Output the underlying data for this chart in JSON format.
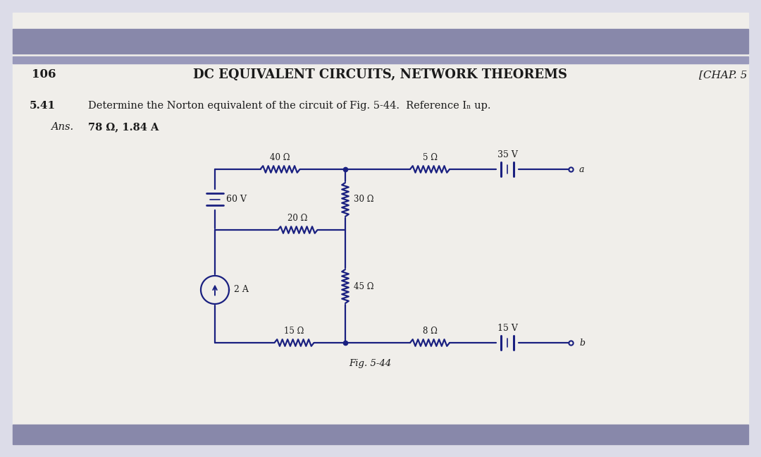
{
  "page_number": "106",
  "header_title": "DC EQUIVALENT CIRCUITS, NETWORK THEOREMS",
  "header_right": "[CHAP. 5",
  "problem_num": "5.41",
  "problem_text": "Determine the Norton equivalent of the circuit of Fig. 5-44.  Reference Iₙ up.",
  "ans_label": "Ans.",
  "ans_text": "78 Ω, 1.84 A",
  "fig_label": "Fig. 5-44",
  "page_bg": "#dcdce8",
  "inner_bg": "#f0eeea",
  "circuit_color": "#1a2080",
  "text_color": "#1a1a1a",
  "header_bar_color": "#8888aa",
  "header_bar2_color": "#9999bb"
}
